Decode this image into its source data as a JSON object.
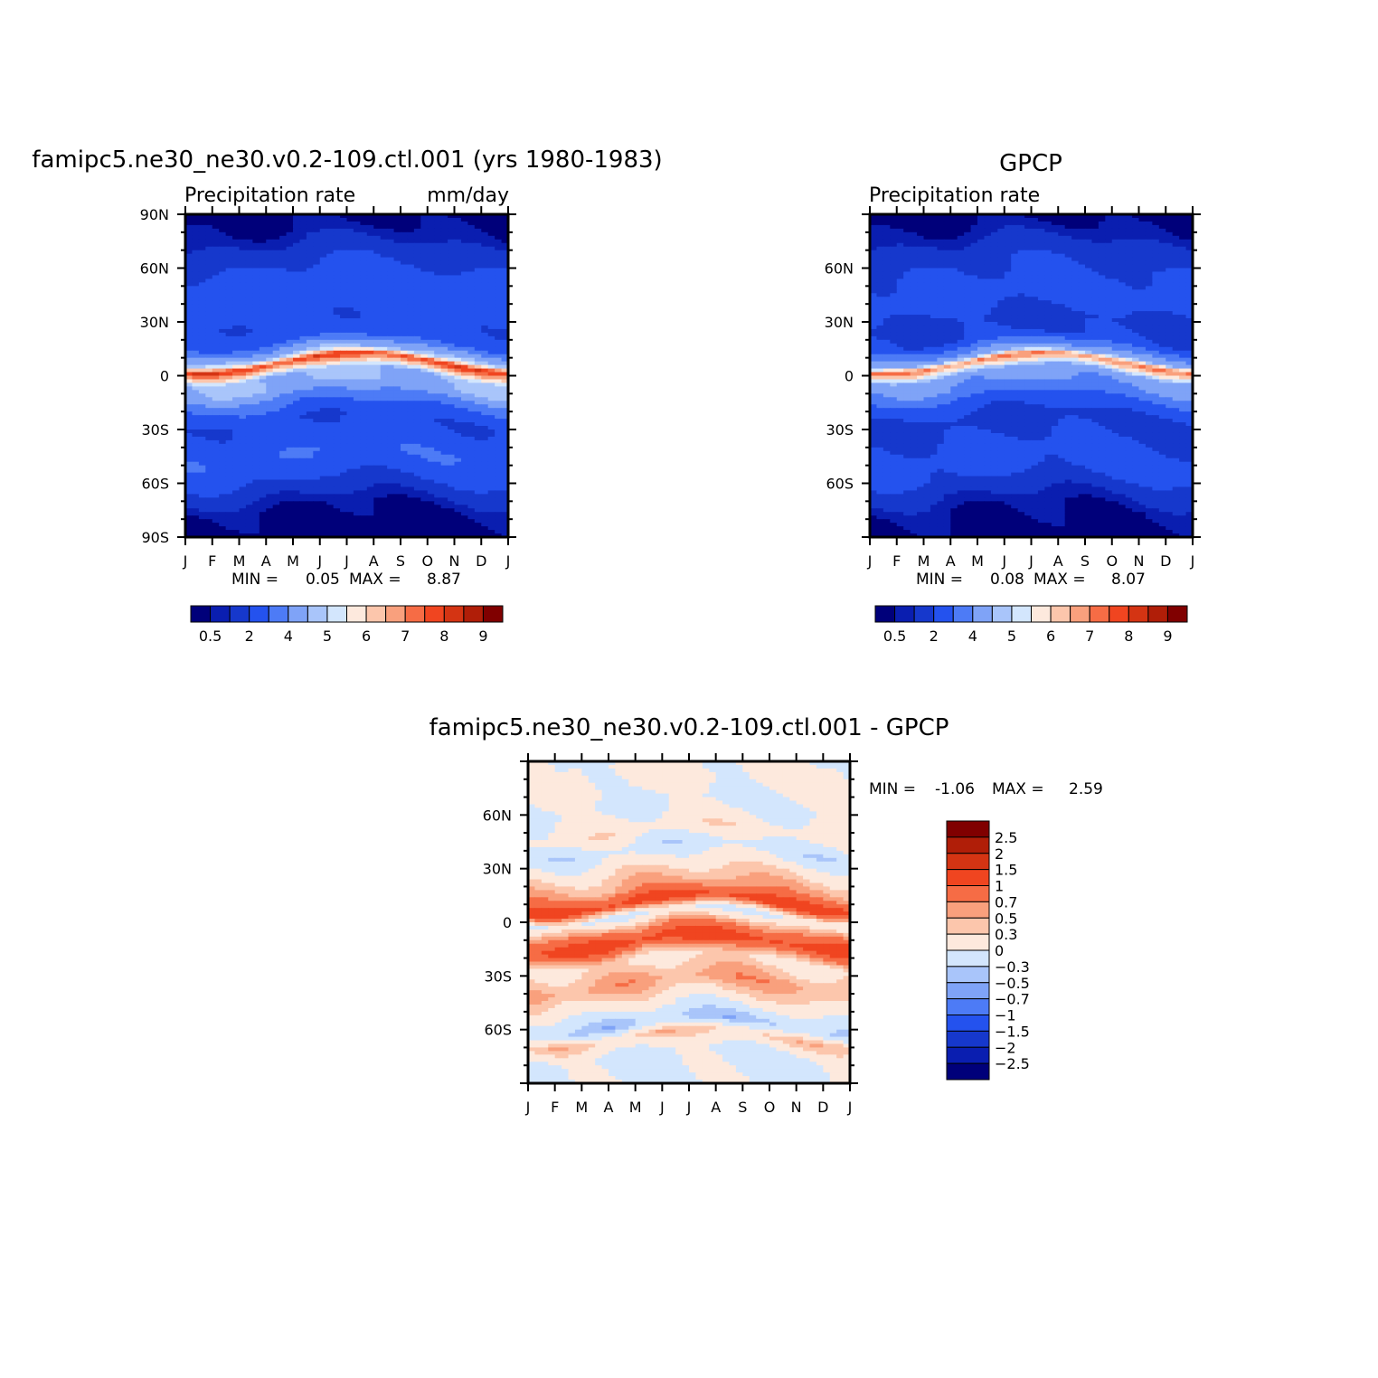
{
  "chart_data": [
    {
      "type": "heatmap",
      "id": "model",
      "title": "famipc5.ne30_ne30.v0.2-109.ctl.001 (yrs 1980-1983)",
      "subtitle_left": "Precipitation rate",
      "subtitle_right": "mm/day",
      "stats": {
        "min_label": "MIN =",
        "min": "0.05",
        "max_label": "MAX =",
        "max": "8.87"
      },
      "xlabels": [
        "J",
        "F",
        "M",
        "A",
        "M",
        "J",
        "J",
        "A",
        "S",
        "O",
        "N",
        "D",
        "J"
      ],
      "ylabels": [
        "90N",
        "60N",
        "30N",
        "0",
        "30S",
        "60S",
        "90S"
      ],
      "ytick_values": [
        90,
        60,
        30,
        0,
        -30,
        -60,
        -90
      ],
      "ylim": [
        -90,
        90
      ],
      "xlim": [
        0,
        12
      ],
      "colorbar": {
        "orientation": "horizontal",
        "colors": [
          "#00007a",
          "#0a1eb0",
          "#1638cc",
          "#2452ee",
          "#4d7bf6",
          "#7fa3f7",
          "#a9c5fa",
          "#d3e6fd",
          "#fde9dd",
          "#fcc6ac",
          "#f9a07d",
          "#f66c45",
          "#f04520",
          "#d43413",
          "#b01e08",
          "#800000"
        ],
        "labels": [
          "0.5",
          "2",
          "4",
          "5",
          "6",
          "7",
          "8",
          "9"
        ]
      },
      "latitude_profile": [
        {
          "lat": 90,
          "value": 0.3
        },
        {
          "lat": 80,
          "value": 0.5
        },
        {
          "lat": 70,
          "value": 1.3
        },
        {
          "lat": 60,
          "value": 2.1
        },
        {
          "lat": 50,
          "value": 2.6
        },
        {
          "lat": 40,
          "value": 2.7
        },
        {
          "lat": 30,
          "value": 2.2
        },
        {
          "lat": 20,
          "value": 2.4
        },
        {
          "lat": 10,
          "value": 5.5
        },
        {
          "lat": 7,
          "value": 8.4
        },
        {
          "lat": 3,
          "value": 6.5
        },
        {
          "lat": 0,
          "value": 5.1
        },
        {
          "lat": -7,
          "value": 5.0
        },
        {
          "lat": -15,
          "value": 3.3
        },
        {
          "lat": -25,
          "value": 2.1
        },
        {
          "lat": -35,
          "value": 2.4
        },
        {
          "lat": -45,
          "value": 2.9
        },
        {
          "lat": -55,
          "value": 2.4
        },
        {
          "lat": -65,
          "value": 1.3
        },
        {
          "lat": -75,
          "value": 0.4
        },
        {
          "lat": -90,
          "value": 0.1
        }
      ]
    },
    {
      "type": "heatmap",
      "id": "obs",
      "title": "GPCP",
      "subtitle_left": "Precipitation rate",
      "stats": {
        "min_label": "MIN =",
        "min": "0.08",
        "max_label": "MAX =",
        "max": "8.07"
      },
      "xlabels": [
        "J",
        "F",
        "M",
        "A",
        "M",
        "J",
        "J",
        "A",
        "S",
        "O",
        "N",
        "D",
        "J"
      ],
      "ylabels": [
        "60N",
        "30N",
        "0",
        "30S",
        "60S"
      ],
      "ytick_values": [
        60,
        30,
        0,
        -30,
        -60
      ],
      "ylim": [
        -90,
        90
      ],
      "xlim": [
        0,
        12
      ],
      "colorbar": {
        "orientation": "horizontal",
        "colors": [
          "#00007a",
          "#0a1eb0",
          "#1638cc",
          "#2452ee",
          "#4d7bf6",
          "#7fa3f7",
          "#a9c5fa",
          "#d3e6fd",
          "#fde9dd",
          "#fcc6ac",
          "#f9a07d",
          "#f66c45",
          "#f04520",
          "#d43413",
          "#b01e08",
          "#800000"
        ],
        "labels": [
          "0.5",
          "2",
          "4",
          "5",
          "6",
          "7",
          "8",
          "9"
        ]
      },
      "latitude_profile": [
        {
          "lat": 90,
          "value": 0.2
        },
        {
          "lat": 80,
          "value": 0.6
        },
        {
          "lat": 70,
          "value": 1.4
        },
        {
          "lat": 60,
          "value": 2.0
        },
        {
          "lat": 50,
          "value": 2.3
        },
        {
          "lat": 40,
          "value": 2.3
        },
        {
          "lat": 30,
          "value": 1.7
        },
        {
          "lat": 20,
          "value": 2.0
        },
        {
          "lat": 10,
          "value": 4.8
        },
        {
          "lat": 7,
          "value": 7.6
        },
        {
          "lat": 3,
          "value": 5.8
        },
        {
          "lat": 0,
          "value": 4.4
        },
        {
          "lat": -7,
          "value": 4.0
        },
        {
          "lat": -15,
          "value": 2.6
        },
        {
          "lat": -25,
          "value": 1.6
        },
        {
          "lat": -35,
          "value": 2.0
        },
        {
          "lat": -45,
          "value": 2.4
        },
        {
          "lat": -55,
          "value": 2.2
        },
        {
          "lat": -65,
          "value": 1.2
        },
        {
          "lat": -75,
          "value": 0.5
        },
        {
          "lat": -90,
          "value": 0.2
        }
      ]
    },
    {
      "type": "heatmap",
      "id": "diff",
      "title": "famipc5.ne30_ne30.v0.2-109.ctl.001 - GPCP",
      "stats": {
        "min_label": "MIN =",
        "min": "-1.06",
        "max_label": "MAX =",
        "max": "2.59"
      },
      "xlabels": [
        "J",
        "F",
        "M",
        "A",
        "M",
        "J",
        "J",
        "A",
        "S",
        "O",
        "N",
        "D",
        "J"
      ],
      "ylabels": [
        "60N",
        "30N",
        "0",
        "30S",
        "60S"
      ],
      "ytick_values": [
        60,
        30,
        0,
        -30,
        -60
      ],
      "ylim": [
        -90,
        90
      ],
      "xlim": [
        0,
        12
      ],
      "colorbar": {
        "orientation": "vertical",
        "colors": [
          "#800000",
          "#b01e08",
          "#d43413",
          "#f04520",
          "#f66c45",
          "#f9a07d",
          "#fcc6ac",
          "#fde9dd",
          "#d3e6fd",
          "#a9c5fa",
          "#7fa3f7",
          "#4d7bf6",
          "#2452ee",
          "#1638cc",
          "#0a1eb0",
          "#00007a"
        ],
        "labels": [
          "2.5",
          "2",
          "1.5",
          "1",
          "0.7",
          "0.5",
          "0.3",
          "0",
          "−0.3",
          "−0.5",
          "−0.7",
          "−1",
          "−1.5",
          "−2",
          "−2.5"
        ]
      },
      "latitude_profile": [
        {
          "lat": 90,
          "value": 0.1
        },
        {
          "lat": 75,
          "value": 0.1
        },
        {
          "lat": 65,
          "value": -0.1
        },
        {
          "lat": 50,
          "value": 0.2
        },
        {
          "lat": 40,
          "value": -0.2
        },
        {
          "lat": 30,
          "value": 0.2
        },
        {
          "lat": 18,
          "value": 0.6
        },
        {
          "lat": 10,
          "value": 1.2
        },
        {
          "lat": 3,
          "value": -0.1
        },
        {
          "lat": -5,
          "value": 0.7
        },
        {
          "lat": -12,
          "value": 1.2
        },
        {
          "lat": -22,
          "value": 0.2
        },
        {
          "lat": -35,
          "value": 0.6
        },
        {
          "lat": -45,
          "value": 0.2
        },
        {
          "lat": -58,
          "value": -0.4
        },
        {
          "lat": -65,
          "value": 0.4
        },
        {
          "lat": -75,
          "value": -0.1
        },
        {
          "lat": -90,
          "value": -0.05
        }
      ]
    }
  ]
}
